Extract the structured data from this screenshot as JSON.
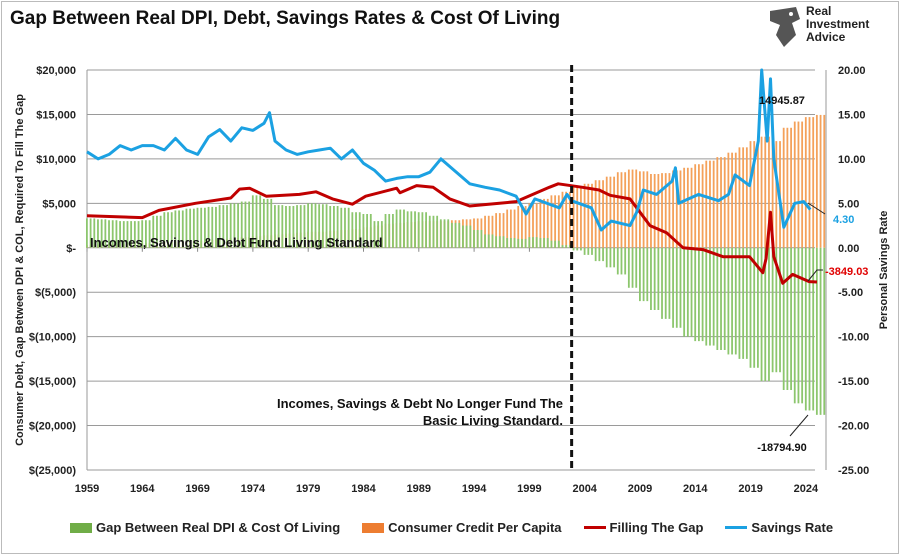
{
  "chart_data": {
    "type": "bar+line",
    "title": "Gap Between Real DPI, Debt, Savings Rates & Cost Of Living",
    "ylabel_left": "Consumer Debt, Gap Between DPI & COL, Required To Fill The Gap",
    "ylabel_right": "Personal Savings Rate",
    "ylim_left": [
      -25000,
      20000
    ],
    "ylim_right": [
      -25,
      20
    ],
    "left_ticks": [
      "$20,000",
      "$15,000",
      "$10,000",
      "$5,000",
      "$-",
      "$(5,000)",
      "$(10,000)",
      "$(15,000)",
      "$(20,000)",
      "$(25,000)"
    ],
    "right_ticks": [
      "20.00",
      "15.00",
      "10.00",
      "5.00",
      "0.00",
      "-5.00",
      "-10.00",
      "-15.00",
      "-20.00",
      "-25.00"
    ],
    "x_ticks": [
      "1959",
      "1964",
      "1969",
      "1974",
      "1979",
      "1984",
      "1989",
      "1994",
      "1999",
      "2004",
      "2009",
      "2014",
      "2019",
      "2024"
    ],
    "grid": true,
    "legend_position": "bottom",
    "bar_years": [
      1959,
      2025
    ],
    "series": [
      {
        "name": "Gap Between Real DPI & Cost Of Living",
        "type": "bar",
        "axis": "left",
        "color": "#70ad47",
        "values": [
          3300,
          3200,
          3100,
          3000,
          3000,
          3100,
          3600,
          4000,
          4200,
          4400,
          4500,
          4600,
          4800,
          5000,
          5200,
          5900,
          5500,
          4800,
          4700,
          4800,
          5000,
          4900,
          4700,
          4500,
          4000,
          3800,
          3000,
          3800,
          4300,
          4100,
          4000,
          3600,
          3200,
          2800,
          2500,
          2000,
          1500,
          1300,
          1100,
          1000,
          1200,
          1100,
          800,
          300,
          -300,
          -800,
          -1500,
          -2200,
          -3000,
          -4500,
          -6000,
          -7000,
          -8000,
          -9000,
          -10000,
          -10500,
          -11000,
          -11500,
          -12000,
          -12500,
          -13500,
          -15000,
          -14000,
          -16000,
          -17500,
          -18300,
          -18794.9
        ]
      },
      {
        "name": "Consumer Credit Per Capita",
        "type": "bar",
        "axis": "left",
        "color": "#ed7d31",
        "values": [
          300,
          350,
          400,
          450,
          500,
          550,
          600,
          650,
          700,
          750,
          800,
          900,
          1000,
          1100,
          1200,
          1300,
          1400,
          1500,
          1600,
          1700,
          1800,
          1800,
          1900,
          2000,
          2100,
          2300,
          2500,
          2700,
          2800,
          2900,
          3000,
          3000,
          3000,
          3100,
          3200,
          3300,
          3600,
          3900,
          4300,
          4700,
          5000,
          5500,
          5900,
          6300,
          6800,
          7200,
          7600,
          8000,
          8500,
          8800,
          8600,
          8300,
          8400,
          8700,
          9000,
          9400,
          9800,
          10200,
          10700,
          11300,
          12000,
          12500,
          12000,
          13500,
          14200,
          14700,
          14945.87
        ]
      },
      {
        "name": "Filling The Gap",
        "type": "line",
        "axis": "left",
        "color": "#c00000",
        "points": [
          [
            1959,
            3600
          ],
          [
            1964,
            3400
          ],
          [
            1965.5,
            4200
          ],
          [
            1968.8,
            5000
          ],
          [
            1972,
            5600
          ],
          [
            1972.8,
            6600
          ],
          [
            1973.7,
            6700
          ],
          [
            1975.2,
            5800
          ],
          [
            1978.2,
            6000
          ],
          [
            1979.7,
            6300
          ],
          [
            1981.2,
            5500
          ],
          [
            1983,
            4900
          ],
          [
            1984.2,
            5800
          ],
          [
            1987,
            6700
          ],
          [
            1987.3,
            6200
          ],
          [
            1988.8,
            7000
          ],
          [
            1990.3,
            6800
          ],
          [
            1991.8,
            5500
          ],
          [
            1993.6,
            4700
          ],
          [
            1996.3,
            5000
          ],
          [
            1997.8,
            5200
          ],
          [
            2000.8,
            6800
          ],
          [
            2001.6,
            7200
          ],
          [
            2003.8,
            6800
          ],
          [
            2005.3,
            6500
          ],
          [
            2006.3,
            5900
          ],
          [
            2008.1,
            5500
          ],
          [
            2008.7,
            4500
          ],
          [
            2009.9,
            2500
          ],
          [
            2011.4,
            1700
          ],
          [
            2012.9,
            0
          ],
          [
            2014.7,
            -200
          ],
          [
            2016.5,
            -1000
          ],
          [
            2018.9,
            -1000
          ],
          [
            2020.1,
            -2800
          ],
          [
            2020.4,
            -1200
          ],
          [
            2020.8,
            4000
          ],
          [
            2021.1,
            -1000
          ],
          [
            2021.9,
            -4000
          ],
          [
            2022.8,
            -3000
          ],
          [
            2024.3,
            -3800
          ],
          [
            2025,
            -3849.03
          ]
        ]
      },
      {
        "name": "Savings Rate",
        "type": "line",
        "axis": "right",
        "color": "#1ba1e2",
        "points": [
          [
            1959,
            10.8
          ],
          [
            1960,
            10
          ],
          [
            1961,
            10.5
          ],
          [
            1962,
            11.5
          ],
          [
            1963,
            11
          ],
          [
            1964,
            11.5
          ],
          [
            1965,
            11.5
          ],
          [
            1966,
            11
          ],
          [
            1967,
            12.3
          ],
          [
            1968,
            11
          ],
          [
            1969,
            10.5
          ],
          [
            1970,
            12.5
          ],
          [
            1971,
            13.3
          ],
          [
            1972,
            12
          ],
          [
            1973,
            13.5
          ],
          [
            1974,
            13.2
          ],
          [
            1975,
            14
          ],
          [
            1975.5,
            15.2
          ],
          [
            1976,
            12
          ],
          [
            1977,
            11
          ],
          [
            1978,
            10.5
          ],
          [
            1979,
            10.8
          ],
          [
            1980,
            11
          ],
          [
            1981,
            11.2
          ],
          [
            1982,
            10
          ],
          [
            1983,
            11
          ],
          [
            1984,
            9.5
          ],
          [
            1985,
            8.7
          ],
          [
            1986,
            7.5
          ],
          [
            1987,
            7.8
          ],
          [
            1988,
            8
          ],
          [
            1989,
            8
          ],
          [
            1990,
            8.5
          ],
          [
            1991,
            10
          ],
          [
            1993.6,
            7.2
          ],
          [
            1995,
            6.8
          ],
          [
            1996.3,
            6.5
          ],
          [
            1997.8,
            5.8
          ],
          [
            1998.7,
            3.8
          ],
          [
            1999.5,
            5.5
          ],
          [
            2001.7,
            4.5
          ],
          [
            2002.4,
            6
          ],
          [
            2002.8,
            5.3
          ],
          [
            2004.6,
            4.5
          ],
          [
            2005.5,
            2
          ],
          [
            2006.4,
            3
          ],
          [
            2008.1,
            2.5
          ],
          [
            2008.7,
            4
          ],
          [
            2009.3,
            6.5
          ],
          [
            2010.5,
            6
          ],
          [
            2011.9,
            7.5
          ],
          [
            2012.2,
            9
          ],
          [
            2012.5,
            5
          ],
          [
            2014.3,
            6
          ],
          [
            2016.1,
            5.3
          ],
          [
            2017,
            6
          ],
          [
            2017.6,
            8.2
          ],
          [
            2018.9,
            7
          ],
          [
            2019.7,
            12
          ],
          [
            2020,
            20
          ],
          [
            2020.5,
            12
          ],
          [
            2020.8,
            19
          ],
          [
            2021.1,
            10
          ],
          [
            2022,
            2.3
          ],
          [
            2023,
            5
          ],
          [
            2023.8,
            5.2
          ],
          [
            2024.4,
            4.3
          ]
        ]
      }
    ],
    "data_labels": {
      "credit_last": "14945.87",
      "savings_last": "4.30",
      "fill_last": "-3849.03",
      "gap_last": "-18794.90"
    },
    "annotations": {
      "upper": "Incomes, Savings & Debt Fund Living Standard",
      "lower_line1": "Incomes, Savings & Debt No Longer Fund The",
      "lower_line2": "Basic Living Standard.",
      "divider_year": 2003
    }
  },
  "logo": {
    "line1": "Real",
    "line2": "Investment",
    "line3": "Advice"
  }
}
